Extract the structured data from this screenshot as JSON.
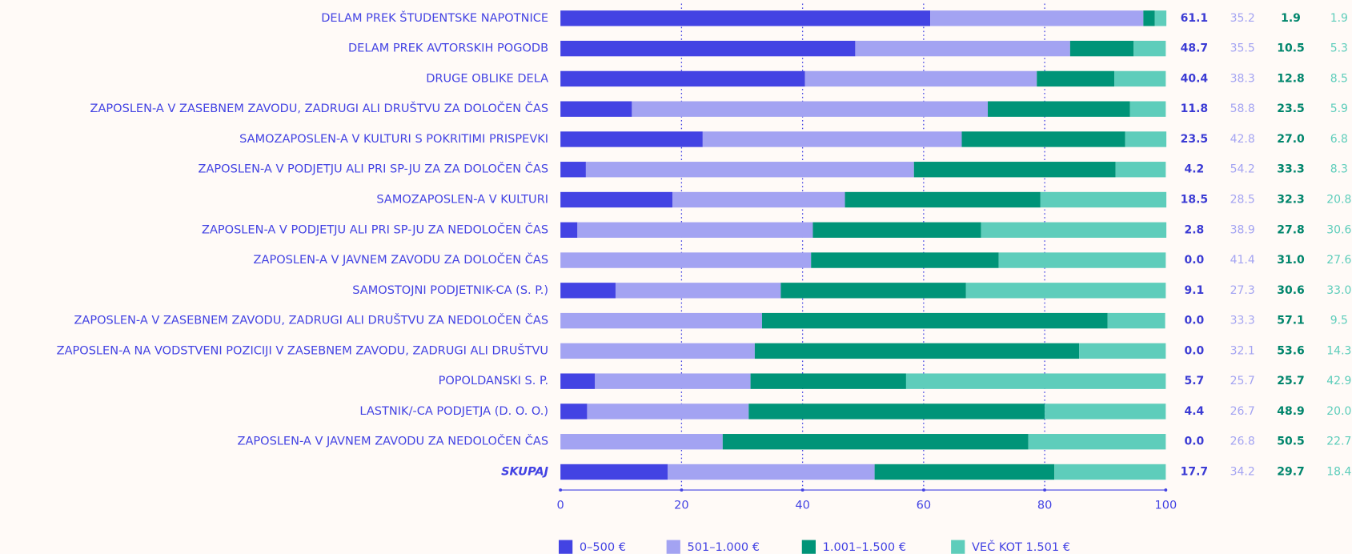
{
  "chart_data": {
    "type": "stacked_bar_horizontal",
    "categories": [
      "DELAM PREK ŠTUDENTSKE NAPOTNICE",
      "DELAM PREK AVTORSKIH POGODB",
      "DRUGE OBLIKE DELA",
      "ZAPOSLEN-A V ZASEBNEM ZAVODU, ZADRUGI ALI DRUŠTVU ZA DOLOČEN ČAS",
      "SAMOZAPOSLEN-A V KULTURI S POKRITIMI PRISPEVKI",
      "ZAPOSLEN-A V PODJETJU ALI PRI SP-JU ZA ZA DOLOČEN ČAS",
      "SAMOZAPOSLEN-A V KULTURI",
      "ZAPOSLEN-A V PODJETJU ALI PRI SP-JU ZA NEDOLOČEN ČAS",
      "ZAPOSLEN-A V JAVNEM ZAVODU ZA DOLOČEN ČAS",
      "SAMOSTOJNI PODJETNIK-CA (S. P.)",
      "ZAPOSLEN-A V ZASEBNEM ZAVODU, ZADRUGI ALI DRUŠTVU ZA NEDOLOČEN ČAS",
      "ZAPOSLEN-A NA VODSTVENI POZICIJI V ZASEBNEM ZAVODU, ZADRUGI ALI DRUŠTVU",
      "POPOLDANSKI S. P.",
      "LASTNIK/-CA PODJETJA (D. O. O.)",
      "ZAPOSLEN-A V JAVNEM ZAVODU ZA NEDOLOČEN ČAS",
      "SKUPAJ"
    ],
    "series": [
      {
        "name": "0–500 €",
        "color": "#4343e3",
        "label_color": "#3b3bd4",
        "values": [
          61.1,
          48.7,
          40.4,
          11.8,
          23.5,
          4.2,
          18.5,
          2.8,
          0,
          9.1,
          0,
          0,
          5.7,
          4.4,
          0,
          17.7
        ],
        "value_labels": [
          "61.1",
          "48.7",
          "40.4",
          "11.8",
          "23.5",
          "4.2",
          "18.5",
          "2.8",
          "0.0",
          "9.1",
          "0.0",
          "0.0",
          "5.7",
          "4.4",
          "0.0",
          "17.7"
        ]
      },
      {
        "name": "501–1.000 €",
        "color": "#a3a3f2",
        "label_color": "#a3a3f2",
        "values": [
          35.2,
          35.5,
          38.3,
          58.8,
          42.8,
          54.2,
          28.5,
          38.9,
          41.4,
          27.3,
          33.3,
          32.1,
          25.7,
          26.7,
          26.8,
          34.2
        ],
        "value_labels": [
          "35.2",
          "35.5",
          "38.3",
          "58.8",
          "42.8",
          "54.2",
          "28.5",
          "38.9",
          "41.4",
          "27.3",
          "33.3",
          "32.1",
          "25.7",
          "26.7",
          "26.8",
          "34.2"
        ]
      },
      {
        "name": "1.001–1.500 €",
        "color": "#009478",
        "label_color": "#00856c",
        "values": [
          1.9,
          10.5,
          12.8,
          23.5,
          27,
          33.3,
          32.3,
          27.8,
          31,
          30.6,
          57.1,
          53.6,
          25.7,
          48.9,
          50.5,
          29.7
        ],
        "value_labels": [
          "1.9",
          "10.5",
          "12.8",
          "23.5",
          "27.0",
          "33.3",
          "32.3",
          "27.8",
          "31.0",
          "30.6",
          "57.1",
          "53.6",
          "25.7",
          "48.9",
          "50.5",
          "29.7"
        ]
      },
      {
        "name": "VEČ KOT 1.501 €",
        "color": "#5ecdbb",
        "label_color": "#5ecdbb",
        "values": [
          1.9,
          5.3,
          8.5,
          5.9,
          6.8,
          8.3,
          20.8,
          30.6,
          27.6,
          33,
          9.5,
          14.3,
          42.9,
          20,
          22.7,
          18.4
        ],
        "value_labels": [
          "1.9",
          "5.3",
          "8.5",
          "5.9",
          "6.8",
          "8.3",
          "20.8",
          "30.6",
          "27.6",
          "33.0",
          "9.5",
          "14.3",
          "42.9",
          "20.0",
          "22.7",
          "18.4"
        ]
      }
    ],
    "xlim": [
      0,
      100
    ],
    "xticks": [
      0,
      20,
      40,
      60,
      80,
      100
    ],
    "grid": true,
    "legend": "bottom"
  }
}
